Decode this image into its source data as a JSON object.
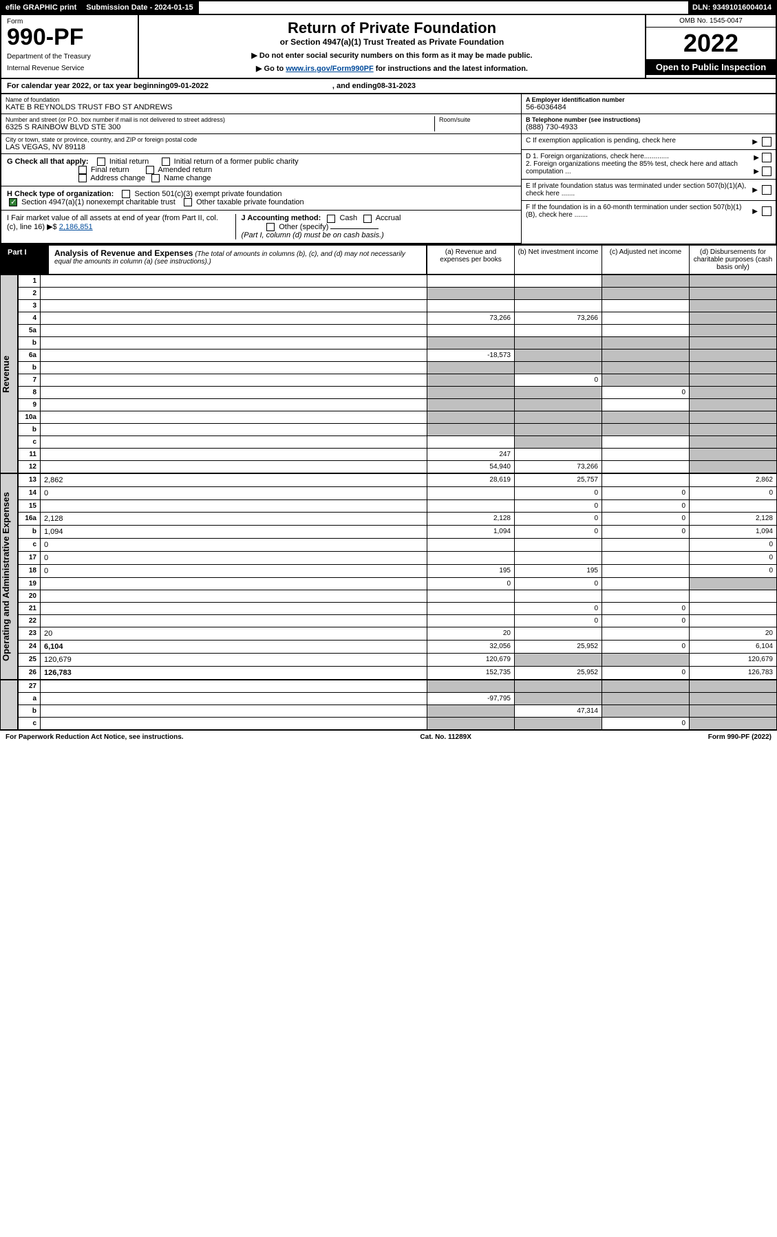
{
  "topbar": {
    "efile": "efile GRAPHIC print",
    "submission_label": "Submission Date - 2024-01-15",
    "dln": "DLN: 93491016004014"
  },
  "header": {
    "form_word": "Form",
    "form_num": "990-PF",
    "dept": "Department of the Treasury",
    "irs": "Internal Revenue Service",
    "title": "Return of Private Foundation",
    "subtitle": "or Section 4947(a)(1) Trust Treated as Private Foundation",
    "instr1": "▶ Do not enter social security numbers on this form as it may be made public.",
    "instr2_pre": "▶ Go to ",
    "instr2_link": "www.irs.gov/Form990PF",
    "instr2_post": " for instructions and the latest information.",
    "omb": "OMB No. 1545-0047",
    "year": "2022",
    "open": "Open to Public Inspection"
  },
  "calendar": {
    "text_pre": "For calendar year 2022, or tax year beginning ",
    "begin": "09-01-2022",
    "mid": ", and ending ",
    "end": "08-31-2023"
  },
  "entity": {
    "name_label": "Name of foundation",
    "name": "KATE B REYNOLDS TRUST FBO ST ANDREWS",
    "addr_label": "Number and street (or P.O. box number if mail is not delivered to street address)",
    "addr": "6325 S RAINBOW BLVD STE 300",
    "room_label": "Room/suite",
    "city_label": "City or town, state or province, country, and ZIP or foreign postal code",
    "city": "LAS VEGAS, NV  89118",
    "ein_label": "A Employer identification number",
    "ein": "56-6036484",
    "phone_label": "B Telephone number (see instructions)",
    "phone": "(888) 730-4933",
    "c_label": "C If exemption application is pending, check here",
    "d1": "D 1. Foreign organizations, check here.............",
    "d2": "2. Foreign organizations meeting the 85% test, check here and attach computation ...",
    "e_label": "E If private foundation status was terminated under section 507(b)(1)(A), check here .......",
    "f_label": "F If the foundation is in a 60-month termination under section 507(b)(1)(B), check here ......."
  },
  "g": {
    "label": "G Check all that apply:",
    "opts": [
      "Initial return",
      "Final return",
      "Address change",
      "Initial return of a former public charity",
      "Amended return",
      "Name change"
    ]
  },
  "h": {
    "label": "H Check type of organization:",
    "o1": "Section 501(c)(3) exempt private foundation",
    "o2": "Section 4947(a)(1) nonexempt charitable trust",
    "o3": "Other taxable private foundation"
  },
  "i": {
    "label": "I Fair market value of all assets at end of year (from Part II, col. (c), line 16) ▶$ ",
    "val": "2,186,851"
  },
  "j": {
    "label": "J Accounting method:",
    "cash": "Cash",
    "accrual": "Accrual",
    "other": "Other (specify)",
    "note": "(Part I, column (d) must be on cash basis.)"
  },
  "part1": {
    "label": "Part I",
    "title": "Analysis of Revenue and Expenses",
    "note": "(The total of amounts in columns (b), (c), and (d) may not necessarily equal the amounts in column (a) (see instructions).)",
    "col_a": "(a) Revenue and expenses per books",
    "col_b": "(b) Net investment income",
    "col_c": "(c) Adjusted net income",
    "col_d": "(d) Disbursements for charitable purposes (cash basis only)"
  },
  "side_rev": "Revenue",
  "side_exp": "Operating and Administrative Expenses",
  "rows": [
    {
      "n": "1",
      "d": "",
      "a": "",
      "b": "",
      "c": "",
      "sh": [
        "c",
        "d"
      ]
    },
    {
      "n": "2",
      "d": "",
      "a": "",
      "b": "",
      "c": "",
      "sh": [
        "a",
        "b",
        "c",
        "d"
      ],
      "bold_not": true
    },
    {
      "n": "3",
      "d": "",
      "a": "",
      "b": "",
      "c": "",
      "sh": [
        "d"
      ]
    },
    {
      "n": "4",
      "d": "",
      "a": "73,266",
      "b": "73,266",
      "c": "",
      "sh": [
        "d"
      ]
    },
    {
      "n": "5a",
      "d": "",
      "a": "",
      "b": "",
      "c": "",
      "sh": [
        "d"
      ]
    },
    {
      "n": "b",
      "d": "",
      "a": "",
      "b": "",
      "c": "",
      "sh": [
        "a",
        "b",
        "c",
        "d"
      ]
    },
    {
      "n": "6a",
      "d": "",
      "a": "-18,573",
      "b": "",
      "c": "",
      "sh": [
        "b",
        "c",
        "d"
      ]
    },
    {
      "n": "b",
      "d": "",
      "a": "",
      "b": "",
      "c": "",
      "sh": [
        "a",
        "b",
        "c",
        "d"
      ]
    },
    {
      "n": "7",
      "d": "",
      "a": "",
      "b": "0",
      "c": "",
      "sh": [
        "a",
        "c",
        "d"
      ]
    },
    {
      "n": "8",
      "d": "",
      "a": "",
      "b": "",
      "c": "0",
      "sh": [
        "a",
        "b",
        "d"
      ]
    },
    {
      "n": "9",
      "d": "",
      "a": "",
      "b": "",
      "c": "",
      "sh": [
        "a",
        "b",
        "d"
      ]
    },
    {
      "n": "10a",
      "d": "",
      "a": "",
      "b": "",
      "c": "",
      "sh": [
        "a",
        "b",
        "c",
        "d"
      ]
    },
    {
      "n": "b",
      "d": "",
      "a": "",
      "b": "",
      "c": "",
      "sh": [
        "a",
        "b",
        "c",
        "d"
      ]
    },
    {
      "n": "c",
      "d": "",
      "a": "",
      "b": "",
      "c": "",
      "sh": [
        "b",
        "d"
      ]
    },
    {
      "n": "11",
      "d": "",
      "a": "247",
      "b": "",
      "c": "",
      "sh": [
        "d"
      ]
    },
    {
      "n": "12",
      "d": "",
      "a": "54,940",
      "b": "73,266",
      "c": "",
      "sh": [
        "d"
      ],
      "bold": true
    }
  ],
  "exp_rows": [
    {
      "n": "13",
      "d": "2,862",
      "a": "28,619",
      "b": "25,757",
      "c": ""
    },
    {
      "n": "14",
      "d": "0",
      "a": "",
      "b": "0",
      "c": "0"
    },
    {
      "n": "15",
      "d": "",
      "a": "",
      "b": "0",
      "c": "0"
    },
    {
      "n": "16a",
      "d": "2,128",
      "a": "2,128",
      "b": "0",
      "c": "0"
    },
    {
      "n": "b",
      "d": "1,094",
      "a": "1,094",
      "b": "0",
      "c": "0"
    },
    {
      "n": "c",
      "d": "0",
      "a": "",
      "b": "",
      "c": ""
    },
    {
      "n": "17",
      "d": "0",
      "a": "",
      "b": "",
      "c": ""
    },
    {
      "n": "18",
      "d": "0",
      "a": "195",
      "b": "195",
      "c": ""
    },
    {
      "n": "19",
      "d": "",
      "a": "0",
      "b": "0",
      "c": "",
      "sh": [
        "d"
      ]
    },
    {
      "n": "20",
      "d": "",
      "a": "",
      "b": "",
      "c": ""
    },
    {
      "n": "21",
      "d": "",
      "a": "",
      "b": "0",
      "c": "0"
    },
    {
      "n": "22",
      "d": "",
      "a": "",
      "b": "0",
      "c": "0"
    },
    {
      "n": "23",
      "d": "20",
      "a": "20",
      "b": "",
      "c": ""
    },
    {
      "n": "24",
      "d": "6,104",
      "a": "32,056",
      "b": "25,952",
      "c": "0",
      "bold": true
    },
    {
      "n": "25",
      "d": "120,679",
      "a": "120,679",
      "b": "",
      "c": "",
      "sh": [
        "b",
        "c"
      ]
    },
    {
      "n": "26",
      "d": "126,783",
      "a": "152,735",
      "b": "25,952",
      "c": "0",
      "bold": true
    }
  ],
  "net_rows": [
    {
      "n": "27",
      "d": "",
      "a": "",
      "b": "",
      "c": "",
      "sh": [
        "a",
        "b",
        "c",
        "d"
      ]
    },
    {
      "n": "a",
      "d": "",
      "a": "-97,795",
      "b": "",
      "c": "",
      "sh": [
        "b",
        "c",
        "d"
      ],
      "bold": true
    },
    {
      "n": "b",
      "d": "",
      "a": "",
      "b": "47,314",
      "c": "",
      "sh": [
        "a",
        "c",
        "d"
      ],
      "bold": true
    },
    {
      "n": "c",
      "d": "",
      "a": "",
      "b": "",
      "c": "0",
      "sh": [
        "a",
        "b",
        "d"
      ],
      "bold": true
    }
  ],
  "footer": {
    "left": "For Paperwork Reduction Act Notice, see instructions.",
    "mid": "Cat. No. 11289X",
    "right": "Form 990-PF (2022)"
  }
}
